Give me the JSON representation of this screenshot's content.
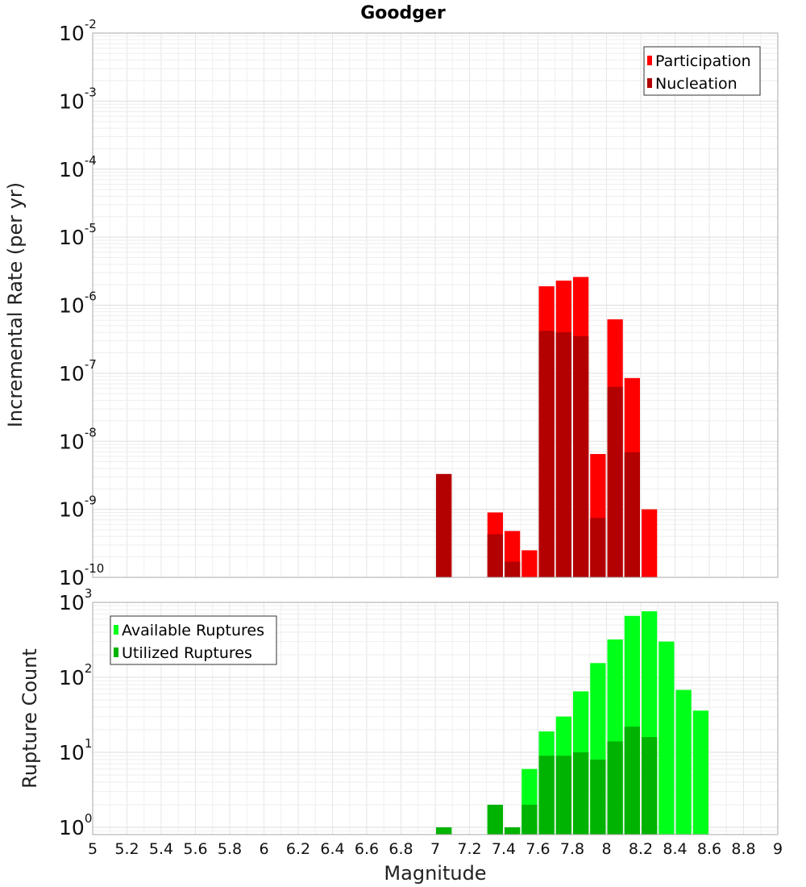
{
  "chart_data": [
    {
      "type": "bar",
      "title": "Goodger",
      "ylabel": "Incremental Rate (per yr)",
      "xlabel": "",
      "xlim": [
        5,
        9
      ],
      "ylim": [
        1e-10,
        0.01
      ],
      "yscale": "log",
      "grid": true,
      "legend_position": "top-right",
      "bin_width": 0.1,
      "series": [
        {
          "name": "Participation",
          "color": "#ff0000",
          "x": [
            7.05,
            7.35,
            7.45,
            7.55,
            7.65,
            7.75,
            7.85,
            7.95,
            8.05,
            8.15,
            8.25
          ],
          "values": [
            3.3e-09,
            9e-10,
            4.8e-10,
            2.5e-10,
            1.9e-06,
            2.3e-06,
            2.6e-06,
            6.5e-09,
            6.2e-07,
            8.5e-08,
            1e-09
          ]
        },
        {
          "name": "Nucleation",
          "color": "#b30000",
          "x": [
            7.05,
            7.35,
            7.45,
            7.65,
            7.75,
            7.85,
            7.95,
            8.05,
            8.15
          ],
          "values": [
            3.3e-09,
            4.3e-10,
            1.7e-10,
            4.2e-07,
            4e-07,
            3.5e-07,
            7.5e-10,
            6.3e-08,
            6.9e-09
          ]
        }
      ]
    },
    {
      "type": "bar",
      "title": "",
      "ylabel": "Rupture Count",
      "xlabel": "Magnitude",
      "xlim": [
        5,
        9
      ],
      "ylim": [
        0.8,
        1000
      ],
      "yscale": "log",
      "grid": true,
      "legend_position": "top-left",
      "bin_width": 0.1,
      "x_ticks": [
        "5",
        "5.2",
        "5.4",
        "5.6",
        "5.8",
        "6",
        "6.2",
        "6.4",
        "6.6",
        "6.8",
        "7",
        "7.2",
        "7.4",
        "7.6",
        "7.8",
        "8",
        "8.2",
        "8.4",
        "8.6",
        "8.8",
        "9"
      ],
      "series": [
        {
          "name": "Available Ruptures",
          "color": "#00ff19",
          "x": [
            7.05,
            7.35,
            7.45,
            7.55,
            7.65,
            7.75,
            7.85,
            7.95,
            8.05,
            8.15,
            8.25,
            8.35,
            8.45,
            8.55
          ],
          "values": [
            1,
            2,
            1,
            6,
            19,
            30,
            65,
            155,
            320,
            660,
            760,
            300,
            68,
            36
          ]
        },
        {
          "name": "Utilized Ruptures",
          "color": "#00b300",
          "x": [
            7.05,
            7.35,
            7.45,
            7.55,
            7.65,
            7.75,
            7.85,
            7.95,
            8.05,
            8.15,
            8.25
          ],
          "values": [
            1,
            2,
            1,
            2,
            9,
            9,
            10,
            8,
            14,
            22,
            16
          ]
        }
      ]
    }
  ]
}
